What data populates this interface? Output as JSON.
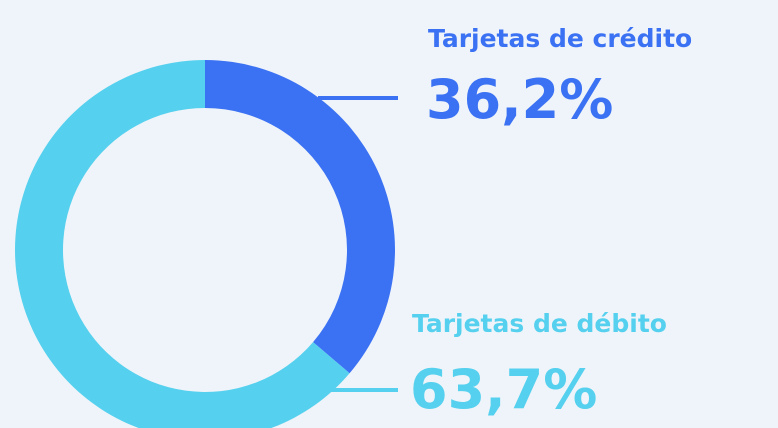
{
  "chart_data": {
    "type": "pie",
    "donut": true,
    "categories": [
      "Tarjetas de crédito",
      "Tarjetas de débito"
    ],
    "values": [
      36.2,
      63.7
    ],
    "value_labels": [
      "36,2%",
      "63,7%"
    ],
    "colors": [
      "#3b71f3",
      "#55d0ee"
    ]
  }
}
